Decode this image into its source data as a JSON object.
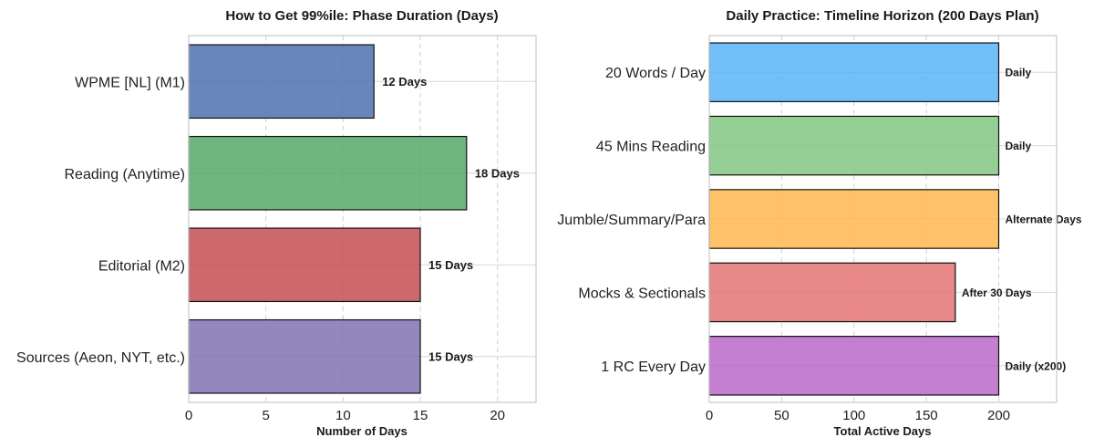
{
  "chart_data": [
    {
      "type": "bar",
      "orientation": "horizontal",
      "title": "How to Get 99%ile: Phase Duration (Days)",
      "xlabel": "Number of Days",
      "ylabel": "",
      "xlim": [
        0,
        22.5
      ],
      "xticks": [
        0,
        5,
        10,
        15,
        20
      ],
      "grid": true,
      "categories": [
        "WPME [NL] (M1)",
        "Reading (Anytime)",
        "Editorial (M2)",
        "Sources (Aeon, NYT, etc.)"
      ],
      "values": [
        12,
        18,
        15,
        15
      ],
      "labels": [
        "12 Days",
        "18 Days",
        "15 Days",
        "15 Days"
      ],
      "colors": [
        "#4c72b0",
        "#55a868",
        "#c44e52",
        "#8172b2"
      ]
    },
    {
      "type": "bar",
      "orientation": "horizontal",
      "title": "Daily Practice: Timeline Horizon (200 Days Plan)",
      "xlabel": "Total Active Days",
      "ylabel": "",
      "xlim": [
        0,
        240
      ],
      "xticks": [
        0,
        50,
        100,
        150,
        200
      ],
      "grid": true,
      "categories": [
        "20 Words / Day",
        "45 Mins Reading",
        "Jumble/Summary/Para",
        "Mocks & Sectionals",
        "1 RC Every Day"
      ],
      "values": [
        200,
        200,
        200,
        170,
        200
      ],
      "labels": [
        "Daily",
        "Daily",
        "Alternate Days",
        "After 30 Days",
        "Daily (x200)"
      ],
      "colors": [
        "#5ab4f8",
        "#84c784",
        "#ffb74d",
        "#e57373",
        "#ba68c8"
      ]
    }
  ]
}
